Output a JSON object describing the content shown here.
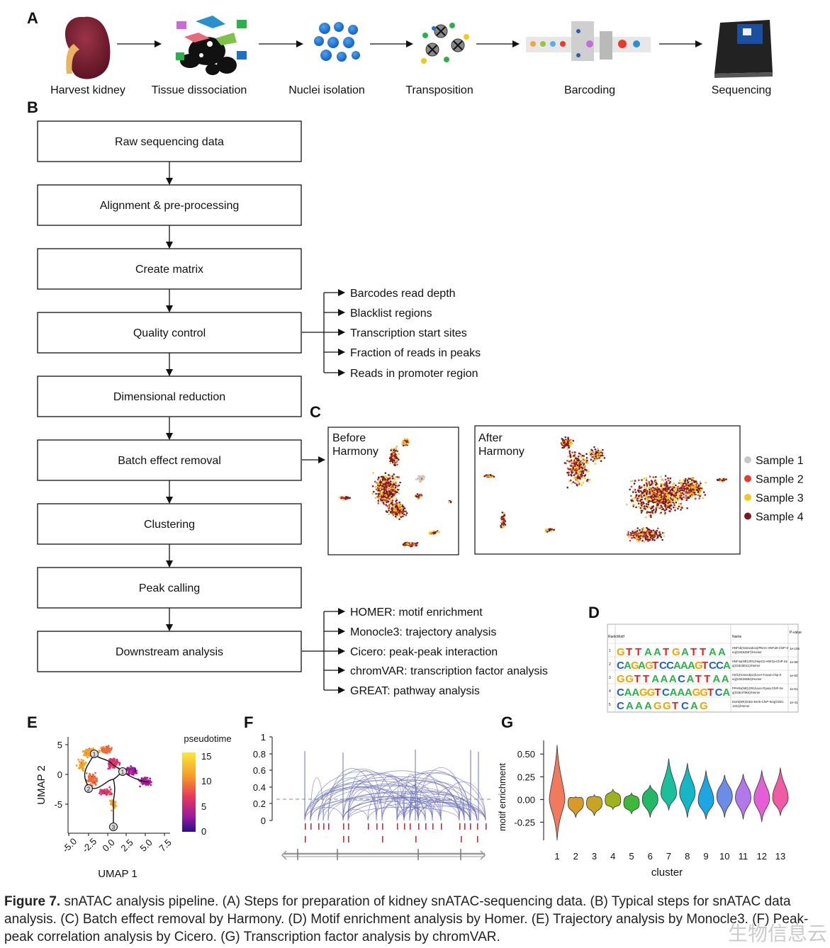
{
  "panels": {
    "A": "A",
    "B": "B",
    "C": "C",
    "D": "D",
    "E": "E",
    "F": "F",
    "G": "G"
  },
  "pipeline_steps": [
    "Harvest kidney",
    "Tissue dissociation",
    "Nuclei isolation",
    "Transposition",
    "Barcoding",
    "Sequencing"
  ],
  "flow_steps": [
    "Raw sequencing data",
    "Alignment & pre-processing",
    "Create matrix",
    "Quality control",
    "Dimensional reduction",
    "Batch effect removal",
    "Clustering",
    "Peak calling",
    "Downstream analysis"
  ],
  "qc_branches": [
    "Barcodes read depth",
    "Blacklist regions",
    "Transcription start sites",
    "Fraction of reads in peaks",
    "Reads in promoter region"
  ],
  "downstream_branches": [
    "HOMER: motif enrichment",
    "Monocle3: trajectory analysis",
    "Cicero: peak-peak interaction",
    "chromVAR: transcription factor analysis",
    "GREAT: pathway analysis"
  ],
  "harmony": {
    "before": [
      "Before",
      "Harmony"
    ],
    "after": [
      "After",
      "Harmony"
    ],
    "legend": [
      {
        "label": "Sample 1",
        "color": "#c8c8c8"
      },
      {
        "label": "Sample 2",
        "color": "#e8392b"
      },
      {
        "label": "Sample 3",
        "color": "#f5c61e"
      },
      {
        "label": "Sample 4",
        "color": "#7a1a1f"
      }
    ]
  },
  "homer_table": {
    "headers": [
      "Rank",
      "Motif",
      "Name",
      "P-value"
    ],
    "ranks": [
      "1",
      "2",
      "3",
      "4",
      "5"
    ],
    "motifs": [
      "GTTAATGATTAA",
      "CAGAGTCCAAAGTCCA",
      "GGTTAAACATTAA",
      "CAAGGTCAAAGGTCA",
      "CAAAGGTCAG"
    ],
    "names": [
      "HNF1b(Homeobox)/PDAC-HNF1B-ChIP-Seq(GSE64557)/Homer",
      "HNF4a(NR),DR1/HepG2-HNF4a-ChIP-Seq(GSE25021)/Homer",
      "Hnf1(Homeobox)/Liver-Foxa2-Chip-Seq(GSE25694)/Homer",
      "PPARa(NR),DR1/Liver-Ppara-ChIP-Seq(GSE47954)/Homer",
      "Esrrb(NR)/mES-Esrrb-ChIP-Seq(GSE11431)/Homer"
    ],
    "pvalues": [
      "1e-105",
      "1e-89",
      "1e-82",
      "1e-51",
      "1e-41"
    ]
  },
  "trajectory": {
    "xlabel": "UMAP 1",
    "ylabel": "UMAP 2",
    "xticks": [
      "-5.0",
      "-2.5",
      "0.0",
      "2.5",
      "5.0",
      "7.5"
    ],
    "yticks": [
      "5",
      "0",
      "-5"
    ],
    "colorbar_title": "pseudotime",
    "colorbar_ticks": [
      "15",
      "10",
      "5",
      "0"
    ],
    "nodes": [
      "1",
      "2",
      "3",
      "4"
    ]
  },
  "cicero": {
    "yticks": [
      "1",
      "0.8",
      "0.6",
      "0.4",
      "0.2",
      "0"
    ]
  },
  "chart_data": {
    "type": "violin",
    "xlabel": "cluster",
    "ylabel": "motif enrichment",
    "yticks": [
      "0.50",
      "0.25",
      "0.00",
      "-0.25"
    ],
    "categories": [
      "1",
      "2",
      "3",
      "4",
      "5",
      "6",
      "7",
      "8",
      "9",
      "10",
      "11",
      "12",
      "13"
    ],
    "colors": [
      "#f07a5e",
      "#d89a2a",
      "#c6a524",
      "#9fb21e",
      "#3fb83a",
      "#22b866",
      "#1bbf9b",
      "#15b7c5",
      "#1ea6e3",
      "#6b8de6",
      "#b277e8",
      "#e45ed6",
      "#ef5ca3"
    ],
    "medians": [
      0.0,
      -0.04,
      -0.04,
      -0.01,
      -0.04,
      0.0,
      0.07,
      0.07,
      -0.01,
      0.03,
      0.02,
      0.01,
      0.02
    ],
    "max": [
      0.6,
      0.03,
      0.05,
      0.11,
      0.07,
      0.16,
      0.45,
      0.4,
      0.32,
      0.27,
      0.28,
      0.32,
      0.35
    ],
    "min": [
      -0.45,
      -0.2,
      -0.18,
      -0.11,
      -0.16,
      -0.2,
      -0.12,
      -0.2,
      -0.22,
      -0.2,
      -0.22,
      -0.25,
      -0.18
    ],
    "ylim": [
      -0.45,
      0.65
    ]
  },
  "caption": {
    "label": "Figure 7.",
    "text": "snATAC analysis pipeline. (A) Steps for preparation of kidney snATAC-sequencing data. (B) Typical steps for snATAC data analysis. (C) Batch effect removal by Harmony. (D) Motif enrichment analysis by Homer. (E) Trajectory analysis by Monocle3. (F) Peak-peak correlation analysis by Cicero. (G) Transcription factor analysis by chromVAR."
  },
  "watermark": "生物信息云"
}
